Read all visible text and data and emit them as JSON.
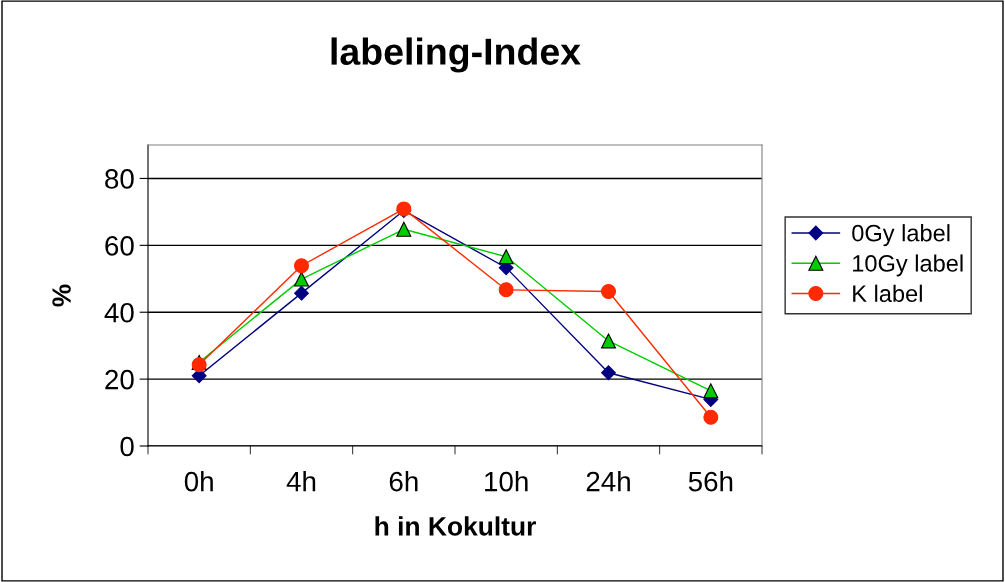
{
  "chart_data": {
    "type": "line",
    "title": "labeling-Index",
    "xlabel": "h in Kokultur",
    "ylabel": "%",
    "categories": [
      "0h",
      "4h",
      "6h",
      "10h",
      "24h",
      "56h"
    ],
    "series": [
      {
        "name": "0Gy label",
        "color": "#000080",
        "marker": "diamond",
        "values": [
          21,
          45.7,
          70.4,
          53.3,
          21.9,
          13.9
        ]
      },
      {
        "name": "10Gy label",
        "color": "#00cc00",
        "marker": "triangle",
        "values": [
          25,
          49.9,
          64.8,
          56.6,
          31.4,
          16.5
        ]
      },
      {
        "name": "K label",
        "color": "#ff2a00",
        "marker": "circle",
        "values": [
          24.3,
          53.9,
          70.9,
          46.7,
          46.2,
          8.6
        ]
      }
    ],
    "ylim": [
      0,
      90
    ],
    "yticks": [
      0,
      20,
      40,
      60,
      80
    ],
    "grid": "y",
    "legend": "right"
  }
}
